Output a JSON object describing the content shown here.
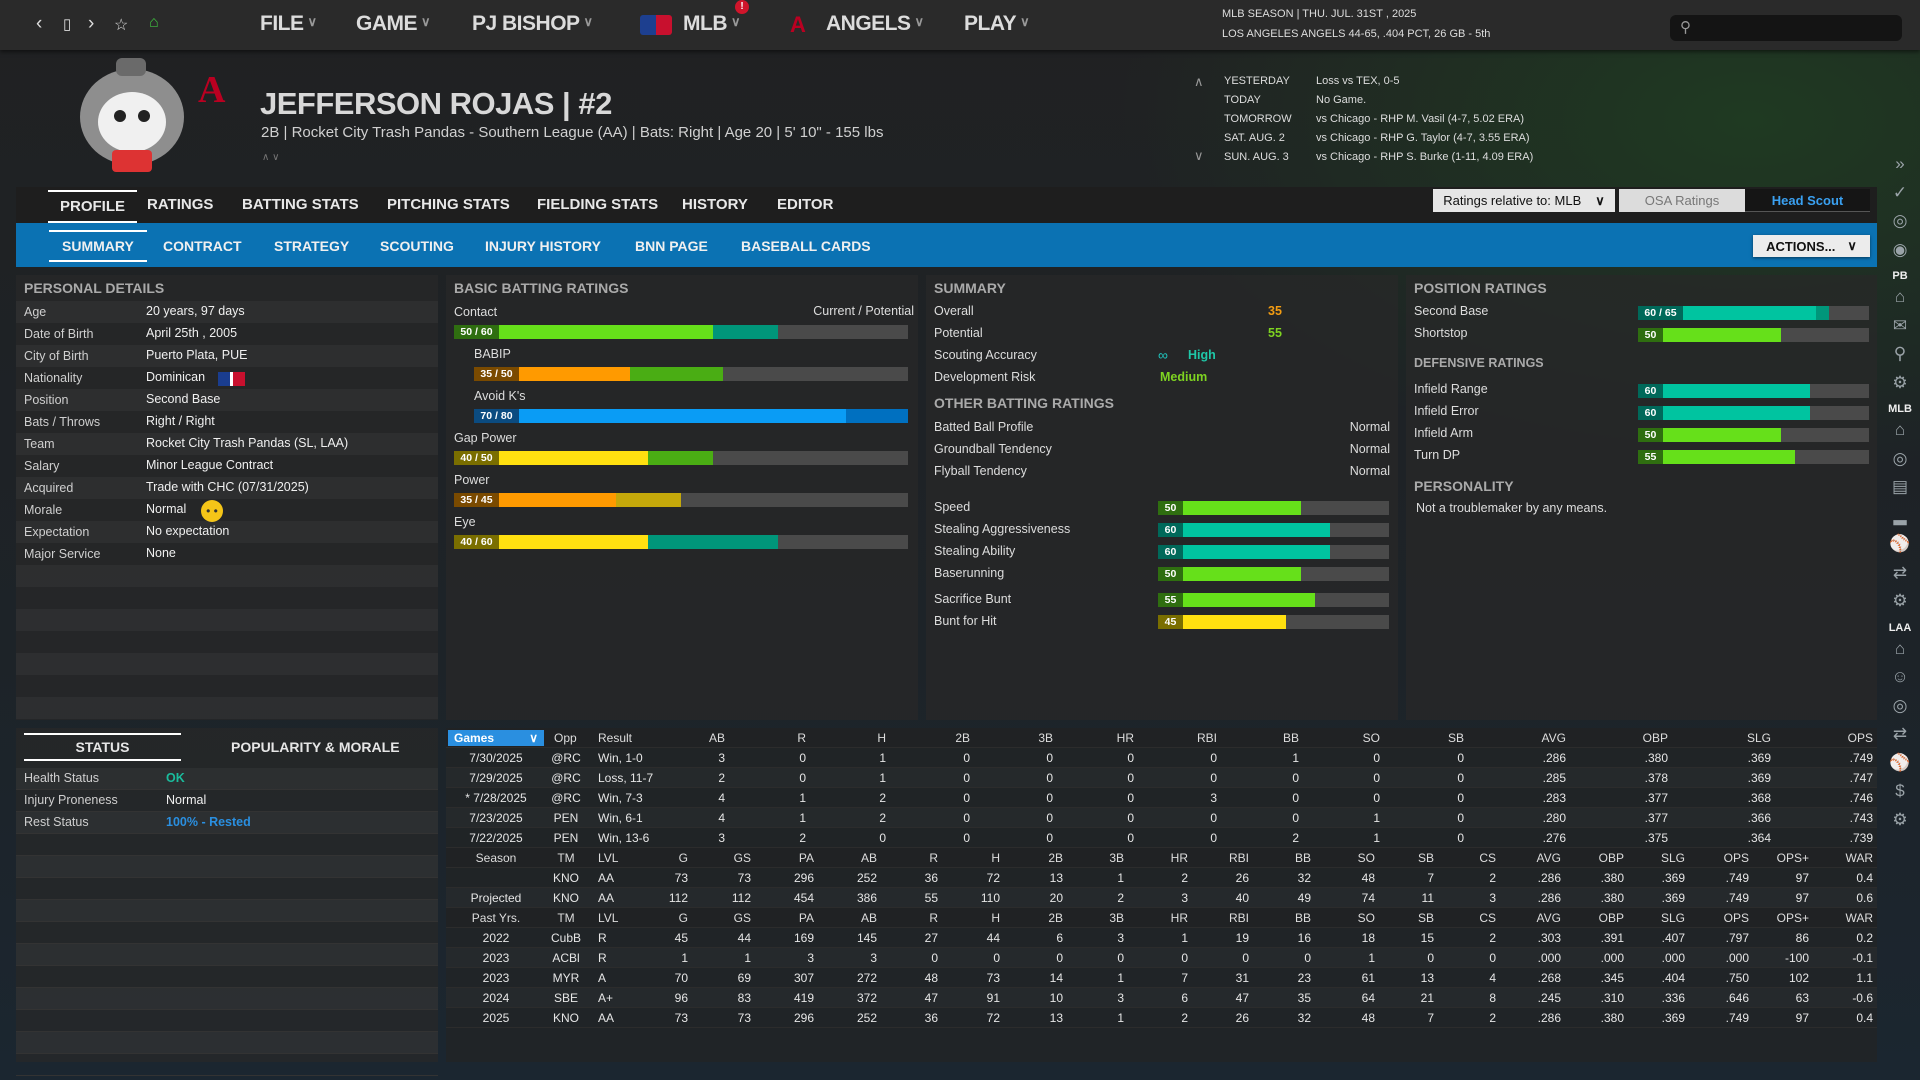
{
  "topbar": {
    "menus": [
      "FILE",
      "GAME",
      "PJ BISHOP",
      "MLB",
      "ANGELS",
      "PLAY"
    ],
    "mlb_badge": "!",
    "season_line": "MLB SEASON  |  THU. JUL. 31ST , 2025",
    "team_line": "LOS ANGELES ANGELS  44-65, .404 PCT, 26 GB - 5th",
    "search_value": ""
  },
  "player": {
    "name": "JEFFERSON ROJAS  |  #2",
    "subtitle": "2B | Rocket City Trash Pandas - Southern League (AA)  |  Bats: Right  |  Age 20  |  5' 10\" - 155 lbs"
  },
  "schedule": [
    {
      "day": "YESTERDAY",
      "info": "Loss vs TEX, 0-5"
    },
    {
      "day": "TODAY",
      "info": "No Game."
    },
    {
      "day": "TOMORROW",
      "info": "vs Chicago - RHP M. Vasil (4-7, 5.02 ERA)"
    },
    {
      "day": "SAT. AUG. 2",
      "info": "vs Chicago - RHP G. Taylor (4-7, 3.55 ERA)"
    },
    {
      "day": "SUN. AUG. 3",
      "info": "vs Chicago - RHP S. Burke (1-11, 4.09 ERA)"
    }
  ],
  "tabs": [
    "PROFILE",
    "RATINGS",
    "BATTING STATS",
    "PITCHING STATS",
    "FIELDING STATS",
    "HISTORY",
    "EDITOR"
  ],
  "subtabs": [
    "SUMMARY",
    "CONTRACT",
    "STRATEGY",
    "SCOUTING",
    "INJURY HISTORY",
    "BNN PAGE",
    "BASEBALL CARDS"
  ],
  "controls": {
    "ratings_relative": "Ratings relative to: MLB",
    "osa": "OSA Ratings",
    "head_scout": "Head Scout",
    "actions": "ACTIONS..."
  },
  "personal": {
    "title": "PERSONAL DETAILS",
    "rows": [
      [
        "Age",
        "20 years, 97 days"
      ],
      [
        "Date of Birth",
        "April 25th , 2005"
      ],
      [
        "City of Birth",
        "Puerto Plata, PUE"
      ],
      [
        "Nationality",
        "Dominican"
      ],
      [
        "Position",
        "Second Base"
      ],
      [
        "Bats / Throws",
        "Right / Right"
      ],
      [
        "Team",
        "Rocket City Trash Pandas (SL, LAA)"
      ],
      [
        "Salary",
        "Minor League Contract"
      ],
      [
        "Acquired",
        "Trade with CHC (07/31/2025)"
      ],
      [
        "Morale",
        "Normal"
      ],
      [
        "Expectation",
        "No expectation"
      ],
      [
        "Major Service",
        "None"
      ]
    ]
  },
  "batting": {
    "title": "BASIC BATTING RATINGS",
    "legend": "Current / Potential",
    "ratings": [
      {
        "name": "Contact",
        "cur": 50,
        "pot": 60,
        "indent": false
      },
      {
        "name": "BABIP",
        "cur": 35,
        "pot": 50,
        "indent": true
      },
      {
        "name": "Avoid K's",
        "cur": 70,
        "pot": 80,
        "indent": true
      },
      {
        "name": "Gap Power",
        "cur": 40,
        "pot": 50,
        "indent": false
      },
      {
        "name": "Power",
        "cur": 35,
        "pot": 45,
        "indent": false
      },
      {
        "name": "Eye",
        "cur": 40,
        "pot": 60,
        "indent": false
      }
    ]
  },
  "summary": {
    "title": "SUMMARY",
    "overall_label": "Overall",
    "overall": "35",
    "potential_label": "Potential",
    "potential": "55",
    "scouting_label": "Scouting Accuracy",
    "scouting": "High",
    "risk_label": "Development Risk",
    "risk": "Medium",
    "other_title": "OTHER BATTING RATINGS",
    "other": [
      [
        "Batted Ball Profile",
        "Normal"
      ],
      [
        "Groundball Tendency",
        "Normal"
      ],
      [
        "Flyball Tendency",
        "Normal"
      ]
    ],
    "running": [
      {
        "name": "Speed",
        "val": 50
      },
      {
        "name": "Stealing Aggressiveness",
        "val": 60
      },
      {
        "name": "Stealing Ability",
        "val": 60
      },
      {
        "name": "Baserunning",
        "val": 50
      }
    ],
    "bunting": [
      {
        "name": "Sacrifice Bunt",
        "val": 55
      },
      {
        "name": "Bunt for Hit",
        "val": 45
      }
    ]
  },
  "position": {
    "title": "POSITION RATINGS",
    "positions": [
      {
        "name": "Second Base",
        "cur": 60,
        "pot": 65
      },
      {
        "name": "Shortstop",
        "cur": 50,
        "pot": 50
      }
    ],
    "def_title": "DEFENSIVE RATINGS",
    "defense": [
      {
        "name": "Infield Range",
        "val": 60
      },
      {
        "name": "Infield Error",
        "val": 60
      },
      {
        "name": "Infield Arm",
        "val": 50
      },
      {
        "name": "Turn DP",
        "val": 55
      }
    ],
    "personality_title": "PERSONALITY",
    "personality": "Not a troublemaker by any means."
  },
  "status": {
    "tabs": [
      "STATUS",
      "POPULARITY & MORALE"
    ],
    "rows": [
      [
        "Health Status",
        "OK"
      ],
      [
        "Injury Proneness",
        "Normal"
      ],
      [
        "Rest Status",
        "100% - Rested"
      ]
    ]
  },
  "games": {
    "selector": "Games",
    "headers": [
      "Opp",
      "Result",
      "AB",
      "R",
      "H",
      "2B",
      "3B",
      "HR",
      "RBI",
      "BB",
      "SO",
      "SB",
      "AVG",
      "OBP",
      "SLG",
      "OPS"
    ],
    "rows": [
      [
        "7/30/2025",
        "@RC",
        "Win, 1-0",
        "3",
        "0",
        "1",
        "0",
        "0",
        "0",
        "0",
        "1",
        "0",
        "0",
        ".286",
        ".380",
        ".369",
        ".749"
      ],
      [
        "7/29/2025",
        "@RC",
        "Loss, 11-7",
        "2",
        "0",
        "1",
        "0",
        "0",
        "0",
        "0",
        "0",
        "0",
        "0",
        ".285",
        ".378",
        ".369",
        ".747"
      ],
      [
        "* 7/28/2025",
        "@RC",
        "Win, 7-3",
        "4",
        "1",
        "2",
        "0",
        "0",
        "0",
        "3",
        "0",
        "0",
        "0",
        ".283",
        ".377",
        ".368",
        ".746"
      ],
      [
        "7/23/2025",
        "PEN",
        "Win, 6-1",
        "4",
        "1",
        "2",
        "0",
        "0",
        "0",
        "0",
        "0",
        "1",
        "0",
        ".280",
        ".377",
        ".366",
        ".743"
      ],
      [
        "7/22/2025",
        "PEN",
        "Win, 13-6",
        "3",
        "2",
        "0",
        "0",
        "0",
        "0",
        "0",
        "2",
        "1",
        "0",
        ".276",
        ".375",
        ".364",
        ".739"
      ]
    ]
  },
  "season": {
    "headers": [
      "Season",
      "TM",
      "LVL",
      "G",
      "GS",
      "PA",
      "AB",
      "R",
      "H",
      "2B",
      "3B",
      "HR",
      "RBI",
      "BB",
      "SO",
      "SB",
      "CS",
      "AVG",
      "OBP",
      "SLG",
      "OPS",
      "OPS+",
      "WAR"
    ],
    "rows": [
      [
        "",
        "KNO",
        "AA",
        "73",
        "73",
        "296",
        "252",
        "36",
        "72",
        "13",
        "1",
        "2",
        "26",
        "32",
        "48",
        "7",
        "2",
        ".286",
        ".380",
        ".369",
        ".749",
        "97",
        "0.4"
      ],
      [
        "Projected",
        "KNO",
        "AA",
        "112",
        "112",
        "454",
        "386",
        "55",
        "110",
        "20",
        "2",
        "3",
        "40",
        "49",
        "74",
        "11",
        "3",
        ".286",
        ".380",
        ".369",
        ".749",
        "97",
        "0.6"
      ]
    ]
  },
  "past": {
    "headers": [
      "Past Yrs.",
      "TM",
      "LVL",
      "G",
      "GS",
      "PA",
      "AB",
      "R",
      "H",
      "2B",
      "3B",
      "HR",
      "RBI",
      "BB",
      "SO",
      "SB",
      "CS",
      "AVG",
      "OBP",
      "SLG",
      "OPS",
      "OPS+",
      "WAR"
    ],
    "rows": [
      [
        "2022",
        "CubB",
        "R",
        "45",
        "44",
        "169",
        "145",
        "27",
        "44",
        "6",
        "3",
        "1",
        "19",
        "16",
        "18",
        "15",
        "2",
        ".303",
        ".391",
        ".407",
        ".797",
        "86",
        "0.2"
      ],
      [
        "2023",
        "ACBl",
        "R",
        "1",
        "1",
        "3",
        "3",
        "0",
        "0",
        "0",
        "0",
        "0",
        "0",
        "0",
        "1",
        "0",
        "0",
        ".000",
        ".000",
        ".000",
        ".000",
        "-100",
        "-0.1"
      ],
      [
        "2023",
        "MYR",
        "A",
        "70",
        "69",
        "307",
        "272",
        "48",
        "73",
        "14",
        "1",
        "7",
        "31",
        "23",
        "61",
        "13",
        "4",
        ".268",
        ".345",
        ".404",
        ".750",
        "102",
        "1.1"
      ],
      [
        "2024",
        "SBE",
        "A+",
        "96",
        "83",
        "419",
        "372",
        "47",
        "91",
        "10",
        "3",
        "6",
        "47",
        "35",
        "64",
        "21",
        "8",
        ".245",
        ".310",
        ".336",
        ".646",
        "63",
        "-0.6"
      ],
      [
        "2025",
        "KNO",
        "AA",
        "73",
        "73",
        "296",
        "252",
        "36",
        "72",
        "13",
        "1",
        "2",
        "26",
        "32",
        "48",
        "7",
        "2",
        ".286",
        ".380",
        ".369",
        ".749",
        "97",
        "0.4"
      ]
    ]
  },
  "sidebar": {
    "groups": [
      "PB",
      "MLB",
      "LAA"
    ]
  },
  "colors": {
    "accent": "#0b72b3",
    "overall": "#f39c12",
    "potential": "#7ed321",
    "ok": "#1abc9c",
    "rested": "#2a8fe0",
    "head_scout": "#3aa0f0"
  }
}
